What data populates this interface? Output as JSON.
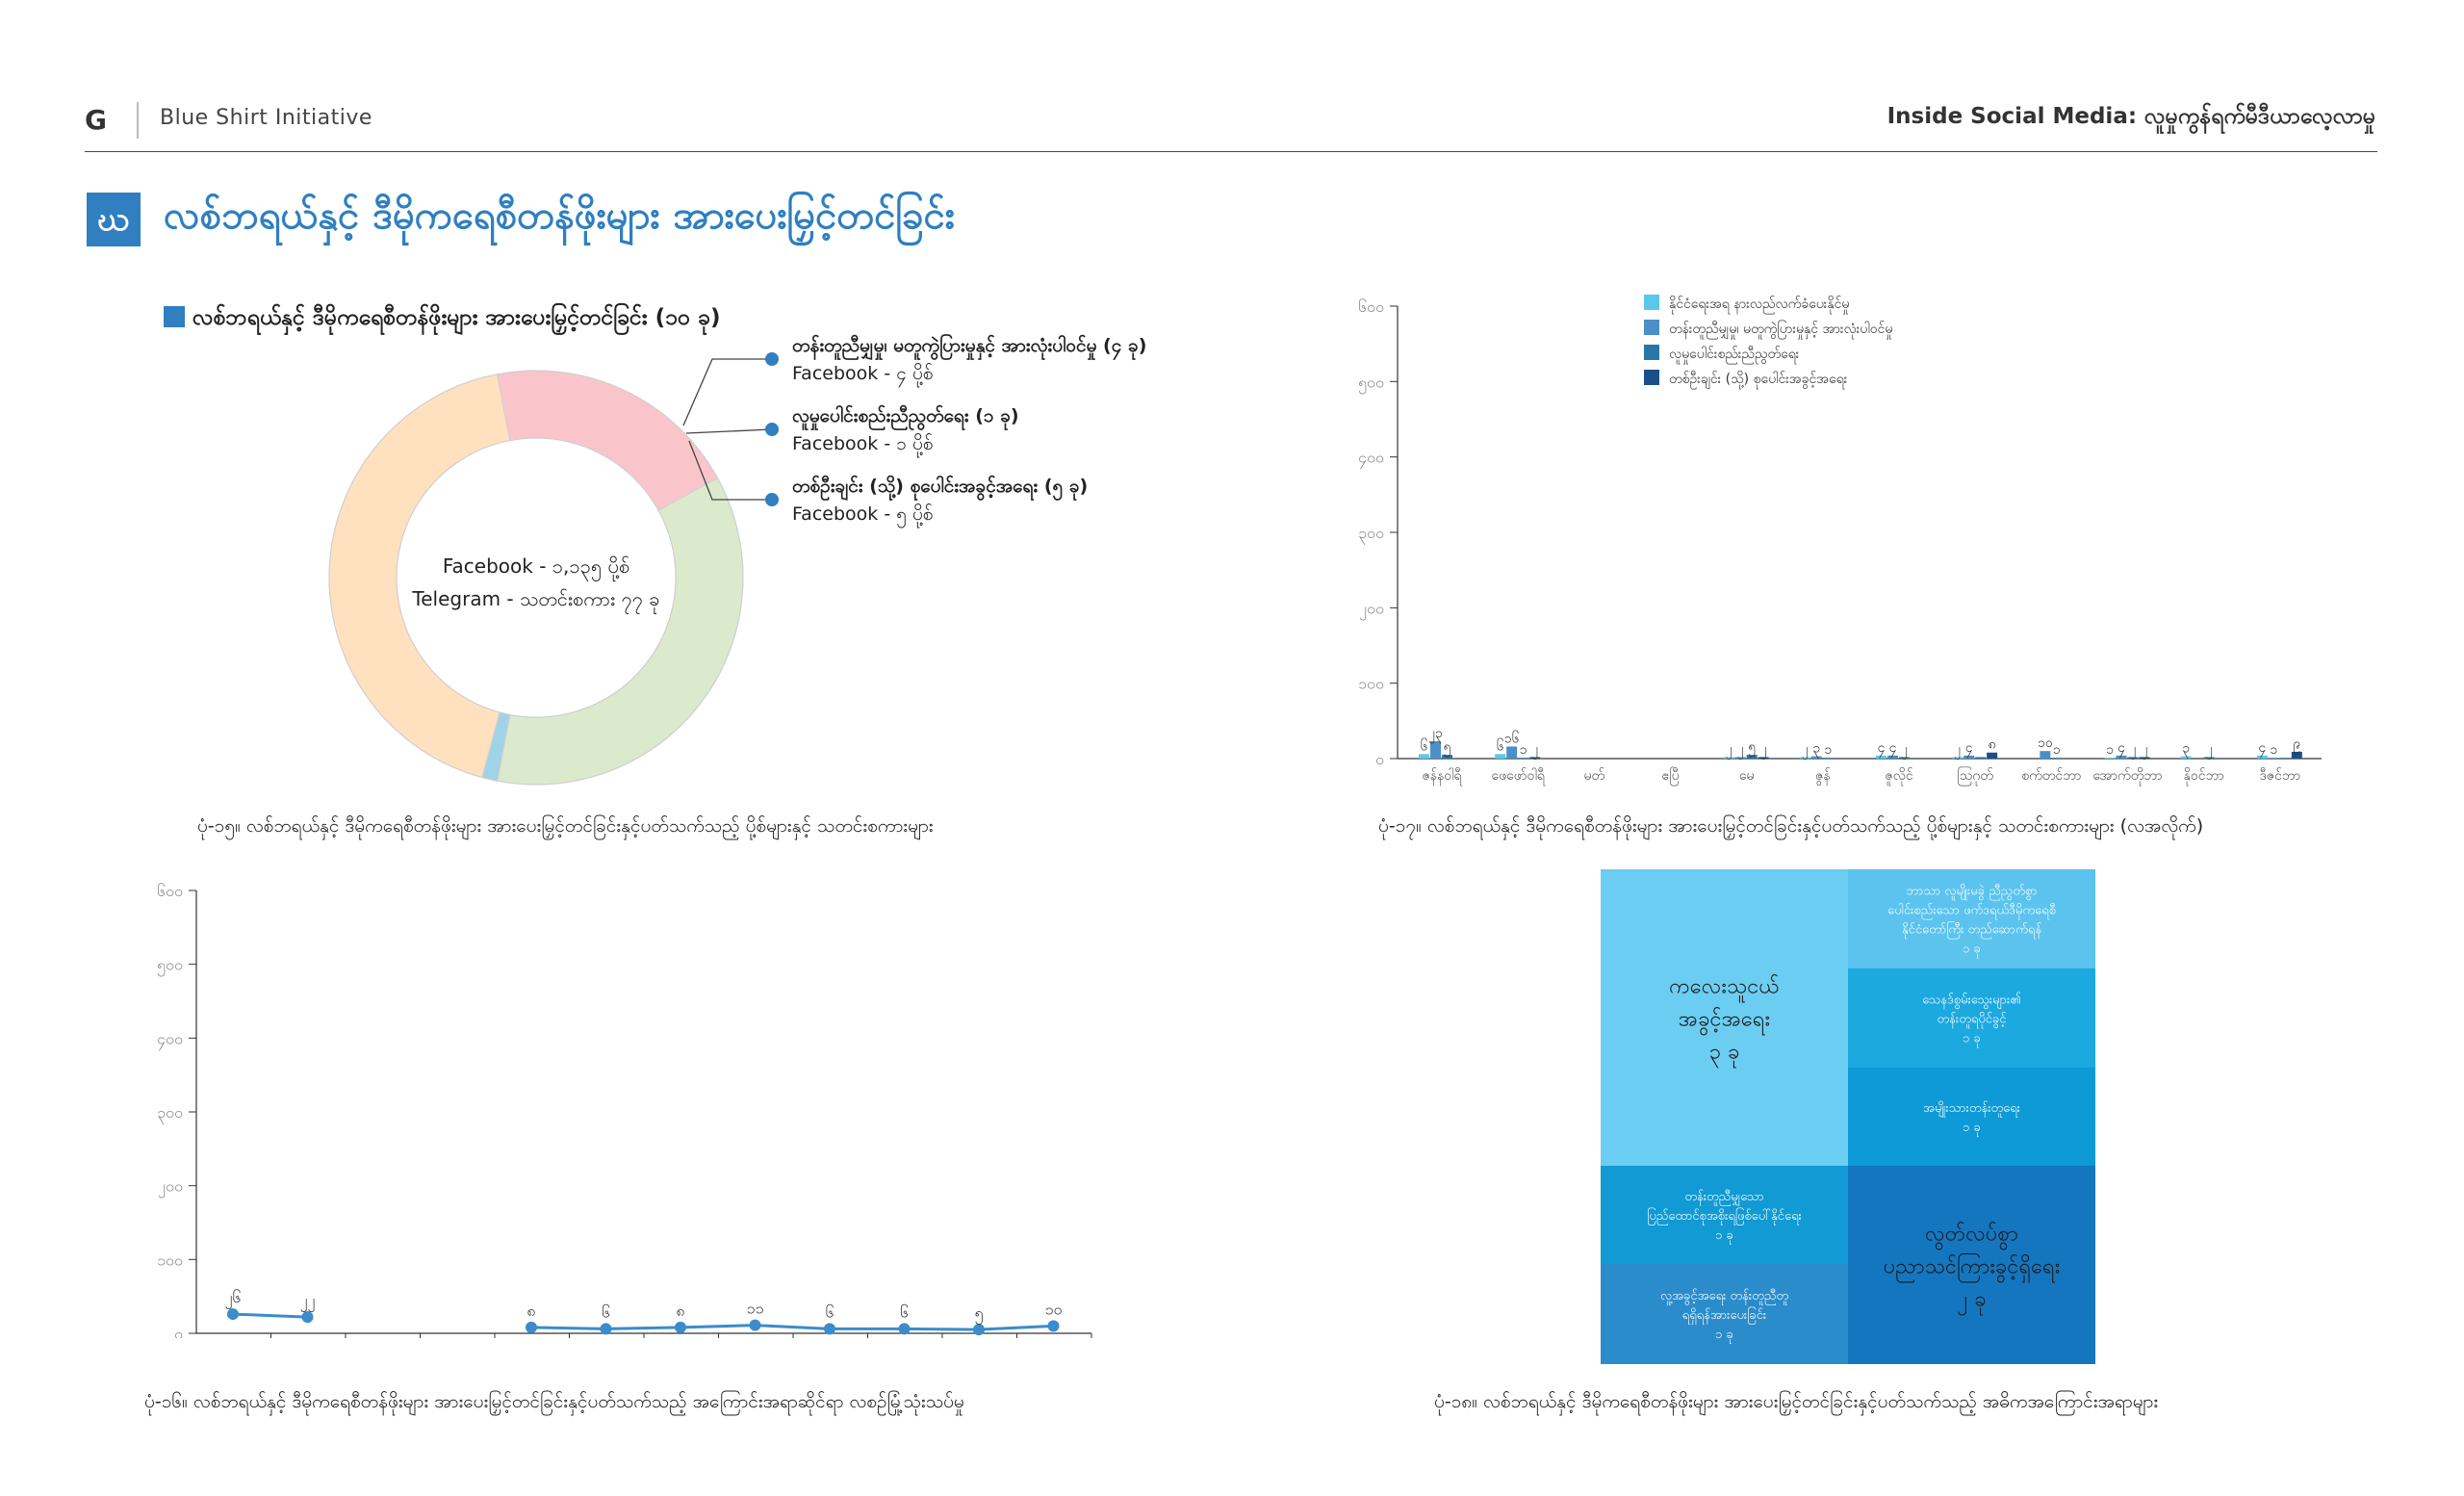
{
  "header": {
    "logo": "G",
    "org": "Blue Shirt Initiative",
    "right_title": "Inside Social Media: လူမှုကွန်ရက်မီဒီယာလေ့လာမှု"
  },
  "section": {
    "badge": "ဃ",
    "title": "လစ်ဘရယ်နှင့် ဒီမိုကရေစီတန်ဖိုးများ အားပေးမြှင့်တင်ခြင်း"
  },
  "colors": {
    "accent": "#2f7fc1",
    "donut": [
      "#f9c5cb",
      "#dbe9cd",
      "#9fd3e8",
      "#ffe1bf"
    ],
    "bar_series": [
      "#5ac8ec",
      "#4a90c8",
      "#2a76a8",
      "#1a4f8a"
    ],
    "line": "#3a8ccc",
    "treemap": [
      "#6ccdf2",
      "#5bc3ee",
      "#1ba9e0",
      "#0d9ad6",
      "#119ad3",
      "#2b8ccb",
      "#1576c0"
    ]
  },
  "captions": {
    "c1": "ပုံ-၁၅။ လစ်ဘရယ်နှင့် ဒီမိုကရေစီတန်ဖိုးများ အားပေးမြှင့်တင်ခြင်းနှင့်ပတ်သက်သည့် ပို့စ်များနှင့် သတင်းစကားများ",
    "c2": "ပုံ-၁၇။ လစ်ဘရယ်နှင့် ဒီမိုကရေစီတန်ဖိုးများ အားပေးမြှင့်တင်ခြင်းနှင့်ပတ်သက်သည့် ပို့စ်များနှင့် သတင်းစကားများ (လအလိုက်)",
    "c3": "ပုံ-၁၆။ လစ်ဘရယ်နှင့် ဒီမိုကရေစီတန်ဖိုးများ အားပေးမြှင့်တင်ခြင်းနှင့်ပတ်သက်သည့် အကြောင်းအရာဆိုင်ရာ လစဉ်မြုံ့သုံးသပ်မှု",
    "c4": "ပုံ-၁၈။ လစ်ဘရယ်နှင့် ဒီမိုကရေစီတန်ဖိုးများ အားပေးမြှင့်တင်ခြင်းနှင့်ပတ်သက်သည့် အဓိကအကြောင်းအရာများ"
  },
  "chart_data": [
    {
      "type": "pie",
      "title": "လစ်ဘရယ်နှင့် ဒီမိုကရေစီတန်ဖိုးများ အားပေးမြှင့်တင်ခြင်း (၁၀ ခု)",
      "center_text": [
        "Facebook - ၁,၁၃၅ ပို့စ်",
        "Telegram - သတင်းစကား ၇၇ ခု"
      ],
      "slices": [
        {
          "value": 20
        },
        {
          "value": 36
        },
        {
          "value": 1.2
        },
        {
          "value": 42.8
        }
      ],
      "annotations": [
        {
          "title": "တန်းတူညီမျှမှု၊ မတူကွဲပြားမှုနှင့် အားလုံးပါဝင်မှု (၄ ခု)",
          "sub": "Facebook -   ၄ ပို့စ်"
        },
        {
          "title": "လူမှုပေါင်းစည်းညီညွတ်ရေး (၁ ခု)",
          "sub": "Facebook -   ၁ ပို့စ်"
        },
        {
          "title": "တစ်ဦးချင်း (သို့) စုပေါင်းအခွင့်အရေး (၅ ခု)",
          "sub": "Facebook -   ၅ ပို့စ်"
        }
      ]
    },
    {
      "type": "bar",
      "categories": [
        "ဇန်နဝါရီ",
        "ဖေဖော်ဝါရီ",
        "မတ်",
        "ဧပြီ",
        "မေ",
        "ဇွန်",
        "ဇူလိုင်",
        "ဩဂုတ်",
        "စက်တင်ဘာ",
        "အောက်တိုဘာ",
        "နိုဝင်ဘာ",
        "ဒီဇင်ဘာ"
      ],
      "ytick_labels": [
        "၀",
        "၁၀၀",
        "၂၀၀",
        "၃၀၀",
        "၄၀၀",
        "၅၀၀",
        "၆၀၀"
      ],
      "ylim": [
        0,
        600
      ],
      "legend_position": "top-center",
      "series": [
        {
          "name": "နိုင်ငံရေးအရ နားလည်လက်ခံပေးနိုင်မှု",
          "values": [
            6,
            6,
            0,
            0,
            2,
            2,
            4,
            2,
            0,
            1,
            3,
            4
          ]
        },
        {
          "name": "တန်းတူညီမျှမှု၊ မတူကွဲပြားမှုနှင့် အားလုံးပါဝင်မှု",
          "values": [
            23,
            16,
            0,
            0,
            2,
            3,
            4,
            4,
            10,
            4,
            0,
            1
          ]
        },
        {
          "name": "လူမှုပေါင်းစည်းညီညွတ်ရေး",
          "values": [
            5,
            1,
            0,
            0,
            5,
            1,
            2,
            2,
            1,
            2,
            2,
            1
          ]
        },
        {
          "name": "တစ်ဦးချင်း (သို့) စုပေါင်းအခွင့်အရေး",
          "values": [
            0,
            2,
            0,
            0,
            2,
            0,
            0,
            8,
            0,
            2,
            0,
            9
          ]
        }
      ],
      "bar_labels": [
        [
          "၆",
          "၂၃",
          "၅",
          ""
        ],
        [
          "၆",
          "၁၆",
          "၁",
          "၂"
        ],
        [
          "",
          "",
          "",
          ""
        ],
        [
          "",
          "",
          "",
          ""
        ],
        [
          "၂",
          "၂",
          "၅",
          "၂"
        ],
        [
          "၂",
          "၃",
          "၁",
          ""
        ],
        [
          "၄",
          "၄",
          "၂",
          ""
        ],
        [
          "၂",
          "၄",
          "",
          "၈"
        ],
        [
          "",
          "၁၀",
          "၁",
          ""
        ],
        [
          "၁",
          "၄",
          "၂",
          "၂"
        ],
        [
          "၃",
          "",
          "၂",
          ""
        ],
        [
          "၄",
          "၁",
          "",
          "၉"
        ]
      ]
    },
    {
      "type": "line",
      "categories": [
        "ဇန်နဝါရီ",
        "ဖေဖော်ဝါရီ",
        "မတ်",
        "ဧပြီ",
        "မေ",
        "ဇွန်",
        "ဇူလိုင်",
        "ဩဂုတ်",
        "စက်တင်ဘာ",
        "အောက်တိုဘာ",
        "နိုဝင်ဘာ",
        "ဒီဇင်ဘာ"
      ],
      "ytick_labels": [
        "၀",
        "၁၀၀",
        "၂၀၀",
        "၃၀၀",
        "၄၀၀",
        "၅၀၀",
        "၆၀၀"
      ],
      "ylim": [
        0,
        600
      ],
      "values": [
        26,
        22,
        null,
        null,
        8,
        6,
        8,
        11,
        6,
        6,
        5,
        10
      ],
      "point_labels": [
        "၂၆",
        "၂၂",
        "",
        "",
        "၈",
        "၆",
        "၈",
        "၁၁",
        "၆",
        "၆",
        "၅",
        "၁၀"
      ]
    },
    {
      "type": "treemap",
      "cells": [
        {
          "label": "ကလေးသူငယ်\nအခွင့်အရေး",
          "value_label": "၃ ခု",
          "big": true
        },
        {
          "label": "ဘာသာ လူမျိုးမခွဲ ညီညွတ်စွာ\nပေါင်းစည်းသော ဖက်ဒရယ်ဒီမိုကရေစီ\nနိုင်ငံတော်ကြီး တည်ဆောက်ရန်",
          "value_label": "၁ ခု",
          "big": false
        },
        {
          "label": "သေနဒ်စွမ်းသွေးများ၏\nတန်းတူရပိုင်ခွင့်",
          "value_label": "၁ ခု",
          "big": false
        },
        {
          "label": "အမျိုးသားတန်းတူရေး",
          "value_label": "၁ ခု",
          "big": false
        },
        {
          "label": "တန်းတူညီမျှသော\nပြည်ထောင်စုအစိုးရဖြစ်ပေါ်နိုင်ရေး",
          "value_label": "၁ ခု",
          "big": false
        },
        {
          "label": "လူ့အခွင့်အရေး တန်းတူညီတူ\nရရှိရန်အားပေးခြင်း",
          "value_label": "၁ ခု",
          "big": false
        },
        {
          "label": "လွတ်လပ်စွာ\nပညာသင်ကြားခွင့်ရှိရေး",
          "value_label": "၂ ခု",
          "big": true
        }
      ]
    }
  ]
}
